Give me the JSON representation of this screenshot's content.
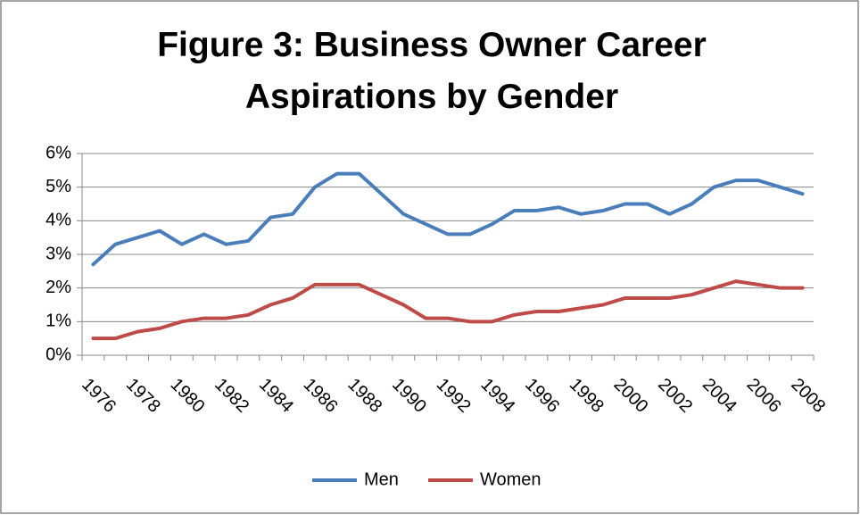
{
  "chart_data": {
    "type": "line",
    "title": "Figure 3: Business Owner Career Aspirations by Gender",
    "categories": [
      "1976",
      null,
      "1978",
      null,
      "1980",
      null,
      "1982",
      null,
      "1984",
      null,
      "1986",
      null,
      "1988",
      null,
      "1990",
      null,
      "1992",
      null,
      "1994",
      null,
      "1996",
      null,
      "1998",
      null,
      "2000",
      null,
      "2002",
      null,
      "2004",
      null,
      "2006",
      null,
      "2008"
    ],
    "series": [
      {
        "name": "Men",
        "color": "#4a7ebb",
        "values": [
          2.7,
          3.3,
          3.5,
          3.7,
          3.3,
          3.6,
          3.3,
          3.4,
          4.1,
          4.2,
          5.0,
          5.4,
          5.4,
          4.8,
          4.2,
          3.9,
          3.6,
          3.6,
          3.9,
          4.3,
          4.3,
          4.4,
          4.2,
          4.3,
          4.5,
          4.5,
          4.2,
          4.5,
          5.0,
          5.2,
          5.2,
          5.0,
          4.8
        ]
      },
      {
        "name": "Women",
        "color": "#be4b48",
        "values": [
          0.5,
          0.5,
          0.7,
          0.8,
          1.0,
          1.1,
          1.1,
          1.2,
          1.5,
          1.7,
          2.1,
          2.1,
          2.1,
          1.8,
          1.5,
          1.1,
          1.1,
          1.0,
          1.0,
          1.2,
          1.3,
          1.3,
          1.4,
          1.5,
          1.7,
          1.7,
          1.7,
          1.8,
          2.0,
          2.2,
          2.1,
          2.0,
          2.0
        ]
      }
    ],
    "ylim": [
      0,
      6
    ],
    "yticks": [
      {
        "value": 0,
        "label": "0%"
      },
      {
        "value": 1,
        "label": "1%"
      },
      {
        "value": 2,
        "label": "2%"
      },
      {
        "value": 3,
        "label": "3%"
      },
      {
        "value": 4,
        "label": "4%"
      },
      {
        "value": 5,
        "label": "5%"
      },
      {
        "value": 6,
        "label": "6%"
      }
    ],
    "grid": true,
    "legend": "bottom"
  }
}
